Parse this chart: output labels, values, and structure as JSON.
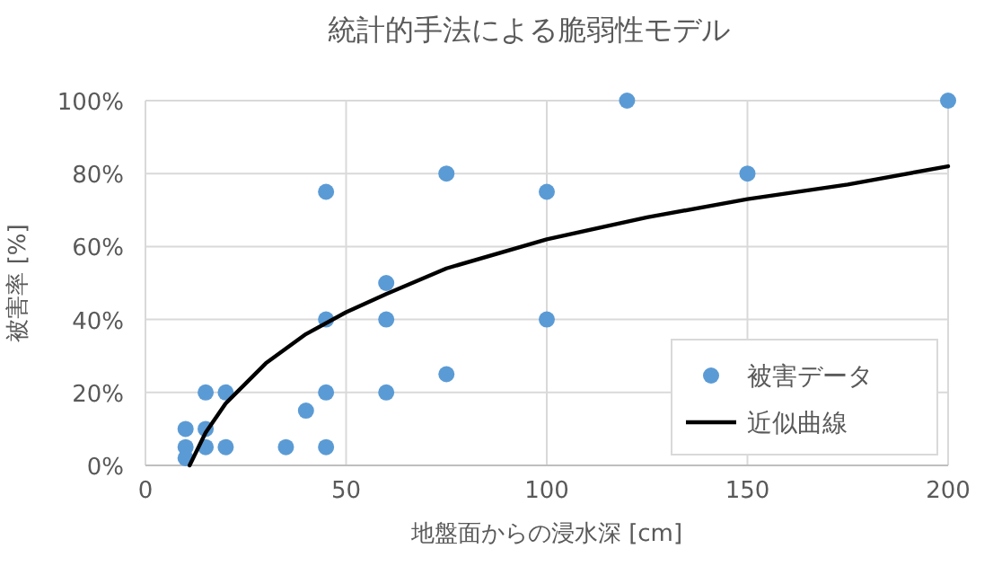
{
  "chart_data": {
    "type": "scatter",
    "title": "統計的手法による脆弱性モデル",
    "xlabel": "地盤面からの浸水深 [cm]",
    "ylabel": "被害率 [%]",
    "xlim": [
      0,
      200
    ],
    "xticks": [
      0,
      50,
      100,
      150,
      200
    ],
    "ylim": [
      0,
      100
    ],
    "yticks": [
      {
        "value": 0,
        "label": "0%"
      },
      {
        "value": 20,
        "label": "20%"
      },
      {
        "value": 40,
        "label": "40%"
      },
      {
        "value": 60,
        "label": "60%"
      },
      {
        "value": 80,
        "label": "80%"
      },
      {
        "value": 100,
        "label": "100%"
      }
    ],
    "grid": true,
    "legend": "bottom right",
    "series": [
      {
        "name": "被害データ",
        "marker": "circle",
        "color": "#5b9bd5",
        "x": [
          10,
          10,
          10,
          15,
          15,
          15,
          20,
          20,
          35,
          40,
          45,
          45,
          45,
          45,
          60,
          60,
          60,
          75,
          75,
          100,
          100,
          120,
          150,
          200
        ],
        "values": [
          10,
          5,
          2,
          10,
          5,
          20,
          20,
          5,
          5,
          15,
          5,
          20,
          40,
          75,
          50,
          40,
          20,
          80,
          25,
          75,
          40,
          100,
          80,
          100
        ]
      },
      {
        "name": "近似曲線",
        "type": "line",
        "marker": "none",
        "color": "#000000",
        "line_style": "solid",
        "x": [
          11,
          15,
          20,
          30,
          40,
          50,
          60,
          75,
          100,
          125,
          150,
          175,
          200
        ],
        "values": [
          0,
          9,
          17,
          28,
          36,
          42,
          47,
          54,
          62,
          68,
          73,
          77,
          82
        ]
      }
    ]
  }
}
